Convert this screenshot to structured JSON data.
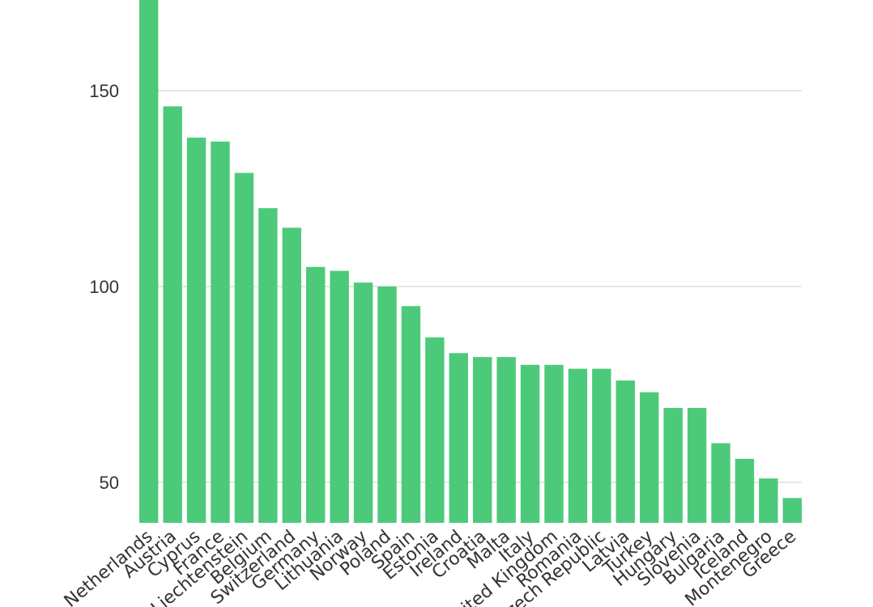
{
  "chart_data": {
    "type": "bar",
    "title": "",
    "xlabel": "",
    "ylabel": "",
    "ylim": [
      40,
      175
    ],
    "yticks": [
      50,
      100,
      150
    ],
    "grid": true,
    "bar_color": "#4cca7a",
    "grid_color": "#e6e6e6",
    "categories": [
      "Netherlands",
      "Austria",
      "Cyprus",
      "France",
      "Liechtenstein",
      "Belgium",
      "Switzerland",
      "Germany",
      "Lithuania",
      "Norway",
      "Poland",
      "Spain",
      "Estonia",
      "Ireland",
      "Croatia",
      "Malta",
      "Italy",
      "United Kingdom",
      "Romania",
      "Czech Republic",
      "Latvia",
      "Turkey",
      "Hungary",
      "Slovenia",
      "Bulgaria",
      "Iceland",
      "Montenegro",
      "Greece"
    ],
    "values": [
      174,
      146,
      138,
      137,
      129,
      120,
      115,
      105,
      104,
      101,
      100,
      95,
      87,
      83,
      82,
      82,
      80,
      80,
      79,
      79,
      76,
      73,
      69,
      69,
      60,
      56,
      51,
      46
    ]
  }
}
